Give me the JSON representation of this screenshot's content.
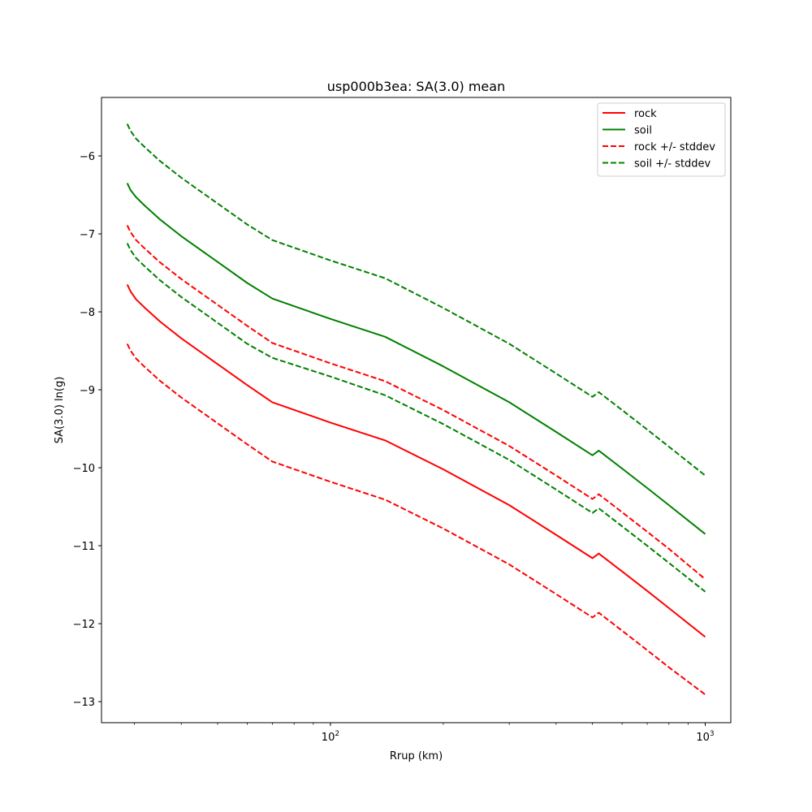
{
  "chart_data": {
    "type": "line",
    "title": "usp000b3ea: SA(3.0) mean",
    "xlabel": "Rrup (km)",
    "ylabel": "SA(3.0) ln(g)",
    "xscale": "log",
    "xlim": [
      24.5,
      1170
    ],
    "ylim": [
      -13.27,
      -5.25
    ],
    "xticks": [
      {
        "value": 100,
        "base": "10",
        "exp": "2"
      },
      {
        "value": 1000,
        "base": "10",
        "exp": "3"
      }
    ],
    "yticks": [
      -6,
      -7,
      -8,
      -9,
      -10,
      -11,
      -12,
      -13
    ],
    "ytick_labels": [
      "−6",
      "−7",
      "−8",
      "−9",
      "−10",
      "−11",
      "−12",
      "−13"
    ],
    "grid": false,
    "legend_position": "upper right",
    "series": [
      {
        "name": "rock",
        "color": "#ff0000",
        "dash": "solid",
        "x": [
          28.7,
          29.3,
          30.3,
          32,
          35,
          40,
          50,
          60,
          70,
          100,
          140,
          200,
          300,
          400,
          500,
          520,
          600,
          700,
          800,
          1000
        ],
        "y": [
          -7.65,
          -7.74,
          -7.84,
          -7.95,
          -8.12,
          -8.34,
          -8.67,
          -8.94,
          -9.16,
          -9.42,
          -9.65,
          -10.02,
          -10.48,
          -10.86,
          -11.16,
          -11.1,
          -11.33,
          -11.58,
          -11.8,
          -12.17
        ]
      },
      {
        "name": "soil",
        "color": "#008000",
        "dash": "solid",
        "x": [
          28.7,
          29.3,
          30.3,
          32,
          35,
          40,
          50,
          60,
          70,
          100,
          140,
          200,
          300,
          400,
          500,
          520,
          600,
          700,
          800,
          1000
        ],
        "y": [
          -6.35,
          -6.44,
          -6.53,
          -6.64,
          -6.81,
          -7.03,
          -7.36,
          -7.63,
          -7.83,
          -8.09,
          -8.32,
          -8.7,
          -9.16,
          -9.54,
          -9.84,
          -9.78,
          -10.01,
          -10.26,
          -10.48,
          -10.85
        ]
      },
      {
        "name": "rock +/- stddev",
        "color": "#ff0000",
        "dash": "dashed",
        "x": [
          28.7,
          29.3,
          30.3,
          32,
          35,
          40,
          50,
          60,
          70,
          100,
          140,
          200,
          300,
          400,
          500,
          520,
          600,
          700,
          800,
          1000
        ],
        "y": [
          -6.89,
          -6.98,
          -7.08,
          -7.19,
          -7.36,
          -7.58,
          -7.91,
          -8.18,
          -8.4,
          -8.66,
          -8.89,
          -9.26,
          -9.72,
          -10.1,
          -10.4,
          -10.34,
          -10.57,
          -10.82,
          -11.04,
          -11.43
        ]
      },
      {
        "name": "",
        "color": "#ff0000",
        "dash": "dashed",
        "x": [
          28.7,
          29.3,
          30.3,
          32,
          35,
          40,
          50,
          60,
          70,
          100,
          140,
          200,
          300,
          400,
          500,
          520,
          600,
          700,
          800,
          1000
        ],
        "y": [
          -8.41,
          -8.5,
          -8.6,
          -8.71,
          -8.88,
          -9.1,
          -9.43,
          -9.7,
          -9.92,
          -10.18,
          -10.41,
          -10.78,
          -11.24,
          -11.62,
          -11.92,
          -11.86,
          -12.09,
          -12.34,
          -12.56,
          -12.91
        ]
      },
      {
        "name": "soil +/- stddev",
        "color": "#008000",
        "dash": "dashed",
        "x": [
          28.7,
          29.3,
          30.3,
          32,
          35,
          40,
          50,
          60,
          70,
          100,
          140,
          200,
          300,
          400,
          500,
          520,
          600,
          700,
          800,
          1000
        ],
        "y": [
          -5.59,
          -5.68,
          -5.78,
          -5.89,
          -6.06,
          -6.28,
          -6.61,
          -6.88,
          -7.08,
          -7.34,
          -7.57,
          -7.95,
          -8.41,
          -8.79,
          -9.09,
          -9.03,
          -9.26,
          -9.51,
          -9.73,
          -10.1
        ]
      },
      {
        "name": "",
        "color": "#008000",
        "dash": "dashed",
        "x": [
          28.7,
          29.3,
          30.3,
          32,
          35,
          40,
          50,
          60,
          70,
          100,
          140,
          200,
          300,
          400,
          500,
          520,
          600,
          700,
          800,
          1000
        ],
        "y": [
          -7.12,
          -7.21,
          -7.31,
          -7.42,
          -7.59,
          -7.81,
          -8.14,
          -8.41,
          -8.59,
          -8.83,
          -9.07,
          -9.44,
          -9.9,
          -10.28,
          -10.58,
          -10.52,
          -10.75,
          -11.0,
          -11.22,
          -11.59
        ]
      }
    ]
  }
}
